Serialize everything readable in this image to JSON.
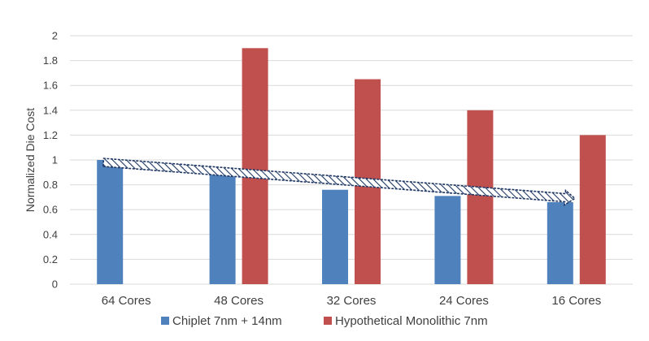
{
  "chart_data": {
    "type": "bar",
    "title": "",
    "xlabel": "",
    "ylabel": "Normalized Die Cost",
    "ylim": [
      0,
      2
    ],
    "yticks": [
      0,
      0.2,
      0.4,
      0.6,
      0.8,
      1,
      1.2,
      1.4,
      1.6,
      1.8,
      2
    ],
    "grid": true,
    "legend_position": "bottom",
    "categories": [
      "64 Cores",
      "48 Cores",
      "32 Cores",
      "24 Cores",
      "16 Cores"
    ],
    "series": [
      {
        "name": "Chiplet 7nm + 14nm",
        "color": "#4f81bd",
        "values": [
          1.0,
          0.9,
          0.76,
          0.71,
          0.66
        ]
      },
      {
        "name": "Hypothetical Monolithic 7nm",
        "color": "#c0504d",
        "values": [
          null,
          1.9,
          1.65,
          1.4,
          1.2
        ]
      }
    ],
    "annotations": [
      {
        "type": "trend-arrow",
        "style": "hatched",
        "from": {
          "category": "64 Cores",
          "y": 0.98
        },
        "to": {
          "category": "16 Cores",
          "y": 0.69
        },
        "color": "#1f3864"
      }
    ]
  }
}
